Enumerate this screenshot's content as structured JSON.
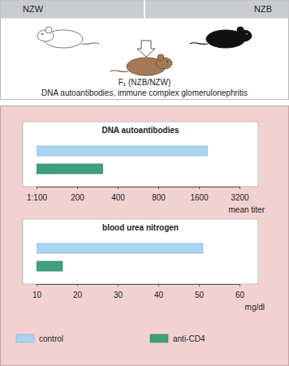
{
  "diagram": {
    "left_strain": "NZW",
    "right_strain": "NZB",
    "offspring": "F₁ (NZB/NZW)",
    "phenotype": "DNA autoantibodies, immune complex glomerulonephritis"
  },
  "chart_data": [
    {
      "type": "bar",
      "orientation": "horizontal",
      "title": "DNA autoantibodies",
      "xlabel": "mean titer",
      "log": "x",
      "xlim": [
        100,
        3200
      ],
      "xticks": [
        {
          "value": 100,
          "label": "1:100"
        },
        200,
        400,
        800,
        1600,
        3200
      ],
      "categories": [
        null
      ],
      "series": [
        {
          "name": "control",
          "color": "#a9d4f2",
          "values": [
            1850
          ]
        },
        {
          "name": "anti-CD4",
          "color": "#3f9f7f",
          "values": [
            310
          ]
        }
      ]
    },
    {
      "type": "bar",
      "orientation": "horizontal",
      "title": "blood urea nitrogen",
      "xlabel": "mg/dl",
      "xlim": [
        10,
        60
      ],
      "xticks": [
        10,
        20,
        30,
        40,
        50,
        60
      ],
      "categories": [
        null
      ],
      "series": [
        {
          "name": "control",
          "color": "#a9d4f2",
          "values": [
            51
          ]
        },
        {
          "name": "anti-CD4",
          "color": "#3f9f7f",
          "values": [
            16.4
          ]
        }
      ]
    }
  ]
}
